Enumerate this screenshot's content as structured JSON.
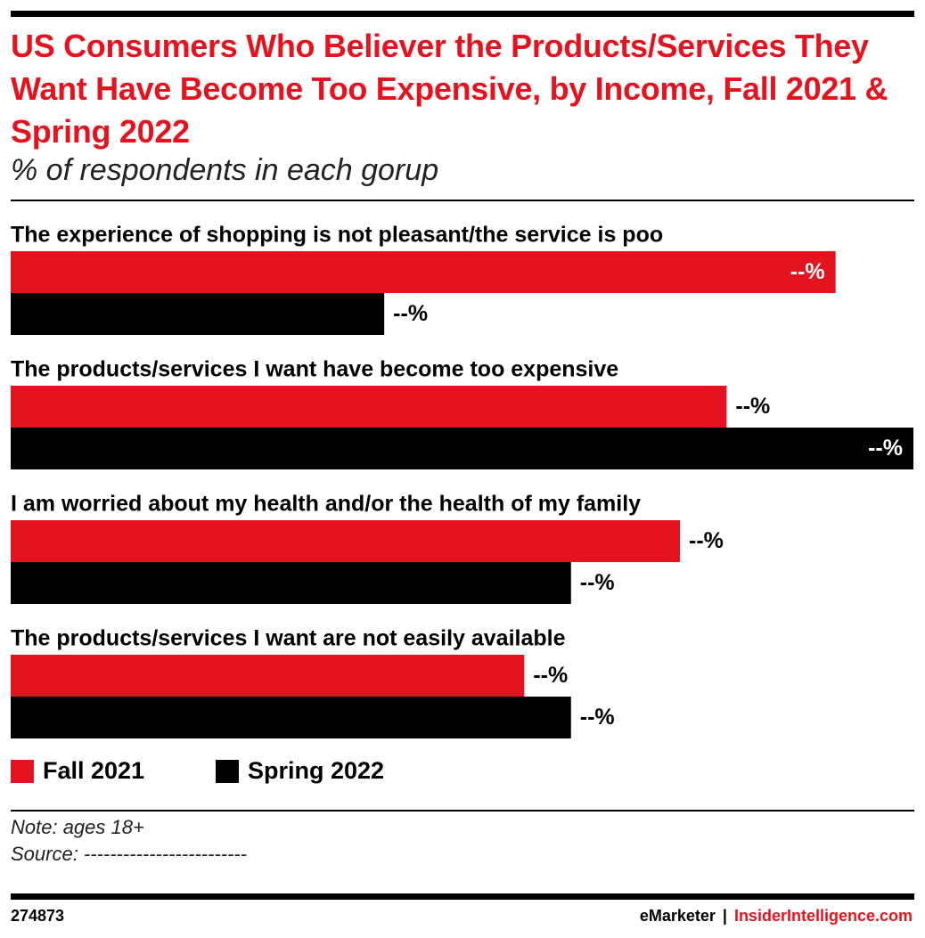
{
  "chart_data": {
    "type": "bar",
    "orientation": "horizontal",
    "title": "US Consumers Who Believer the Products/Services They Want Have Become Too Expensive, by Income, Fall 2021 & Spring 2022",
    "subtitle": "% of respondents in each gorup",
    "categories": [
      "The experience of shopping is not pleasant/the service is poo",
      "The products/services I want have become too expensive",
      "I am worried about my health and/or the health of my family",
      "The products/services I want are not easily available"
    ],
    "series": [
      {
        "name": "Fall 2021",
        "color": "#e3141f",
        "values": [
          53,
          46,
          43,
          33
        ],
        "value_labels": [
          "--%",
          "--%",
          "--%",
          "--%"
        ]
      },
      {
        "name": "Spring 2022",
        "color": "#000000",
        "values": [
          24,
          58,
          36,
          36
        ],
        "value_labels": [
          "--%",
          "--%",
          "--%",
          "--%"
        ]
      }
    ],
    "legend": "bottom-left"
  },
  "note": "Note: ages 18+",
  "source": "Source: -------------------------",
  "chart_id": "274873",
  "brand": "eMarketer",
  "separator": "|",
  "site": "InsiderIntelligence.com"
}
